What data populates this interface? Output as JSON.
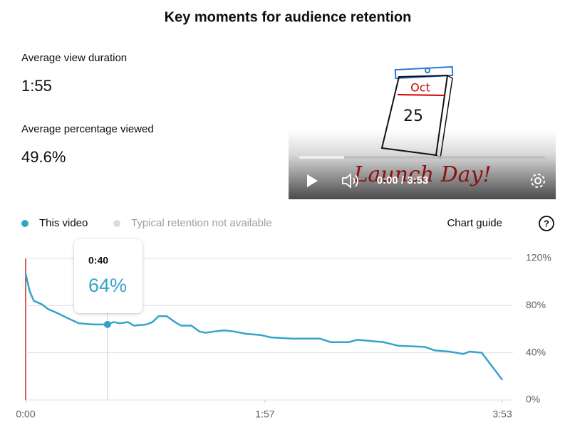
{
  "header": {
    "title": "Key moments for audience retention"
  },
  "stats": [
    {
      "label": "Average view duration",
      "value": "1:55"
    },
    {
      "label": "Average percentage viewed",
      "value": "49.6%"
    }
  ],
  "video": {
    "time": "0:00 / 3:53",
    "drawing": {
      "month": "Oct",
      "day": "25",
      "caption": "Launch Day!"
    }
  },
  "chart_guide": "Chart guide",
  "chart_data": {
    "type": "line",
    "x": [
      0,
      2,
      4,
      8,
      11,
      15,
      21,
      26,
      33,
      40,
      43,
      46,
      50,
      53,
      59,
      62,
      65,
      69,
      73,
      76,
      81,
      85,
      88,
      92,
      97,
      102,
      108,
      115,
      120,
      130,
      144,
      149,
      158,
      162,
      175,
      182,
      195,
      200,
      207,
      214,
      217,
      223,
      226,
      230,
      233
    ],
    "series": [
      {
        "name": "This video",
        "color": "#35a3c9",
        "values": [
          107,
          92,
          84,
          81,
          77,
          74,
          69,
          65,
          64,
          64,
          66,
          65,
          66,
          63,
          64,
          66,
          71,
          71,
          66,
          63,
          63,
          58,
          57,
          58,
          59,
          58,
          56,
          55,
          53,
          52,
          52,
          49,
          49,
          51,
          49,
          46,
          45,
          42,
          41,
          39,
          41,
          40,
          33,
          24,
          17
        ]
      }
    ],
    "unavailable_legend": {
      "label": "Typical retention not available",
      "color": "#dcdcdc"
    },
    "xlim": [
      0,
      233
    ],
    "xticks": [
      {
        "value": 0,
        "label": "0:00"
      },
      {
        "value": 117,
        "label": "1:57"
      },
      {
        "value": 233,
        "label": "3:53"
      }
    ],
    "ylim": [
      0,
      120
    ],
    "yticks": [
      {
        "value": 0,
        "label": "0%"
      },
      {
        "value": 40,
        "label": "40%"
      },
      {
        "value": 80,
        "label": "80%"
      },
      {
        "value": 120,
        "label": "120%"
      }
    ],
    "grid": true,
    "highlight": {
      "x": 40,
      "x_label": "0:40",
      "value": 64,
      "value_label": "64%"
    }
  }
}
